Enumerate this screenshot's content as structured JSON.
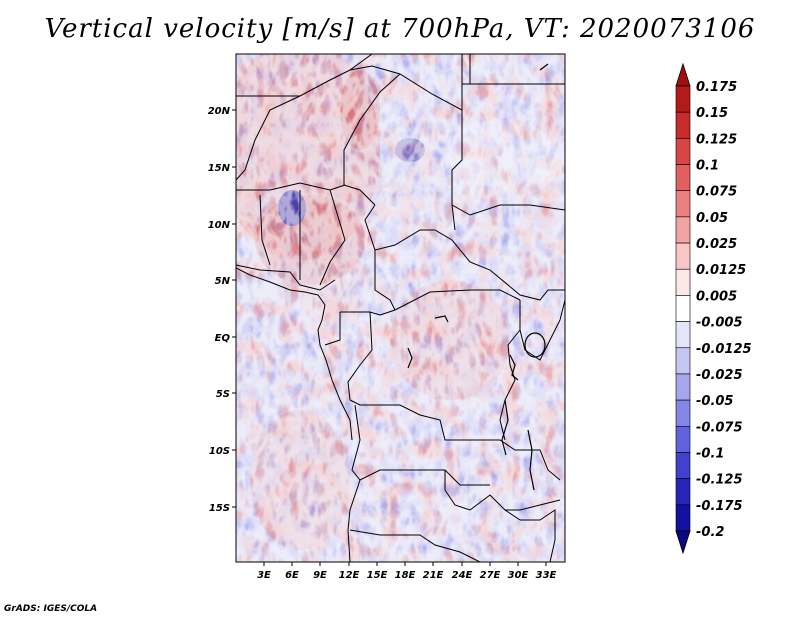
{
  "title": "Vertical velocity [m/s] at 700hPa, VT: 2020073106",
  "credit": "GrADS: IGES/COLA",
  "map": {
    "lat_labels": [
      "20N",
      "15N",
      "10N",
      "5N",
      "EQ",
      "5S",
      "10S",
      "15S"
    ],
    "lon_labels": [
      "3E",
      "6E",
      "9E",
      "12E",
      "15E",
      "18E",
      "21E",
      "24E",
      "27E",
      "30E",
      "33E"
    ]
  },
  "colorbar": {
    "levels": [
      "0.175",
      "0.15",
      "0.125",
      "0.1",
      "0.075",
      "0.05",
      "0.025",
      "0.0125",
      "0.005",
      "-0.005",
      "-0.0125",
      "-0.025",
      "-0.05",
      "-0.075",
      "-0.1",
      "-0.125",
      "-0.175",
      "-0.2"
    ],
    "colors": [
      "#a01010",
      "#b31a1a",
      "#c62c2c",
      "#d74545",
      "#e06060",
      "#ea8080",
      "#f2a3a3",
      "#f8c6c6",
      "#fde8e8",
      "#ffffff",
      "#e4e4fa",
      "#c6c6f4",
      "#a6a6ee",
      "#8585e6",
      "#6262dc",
      "#4141cd",
      "#2525b8",
      "#1212a0",
      "#0a0a80"
    ]
  },
  "colors": {
    "positive": "#d84a4a",
    "negative": "#5a5ad8",
    "boundary": "#000000"
  }
}
